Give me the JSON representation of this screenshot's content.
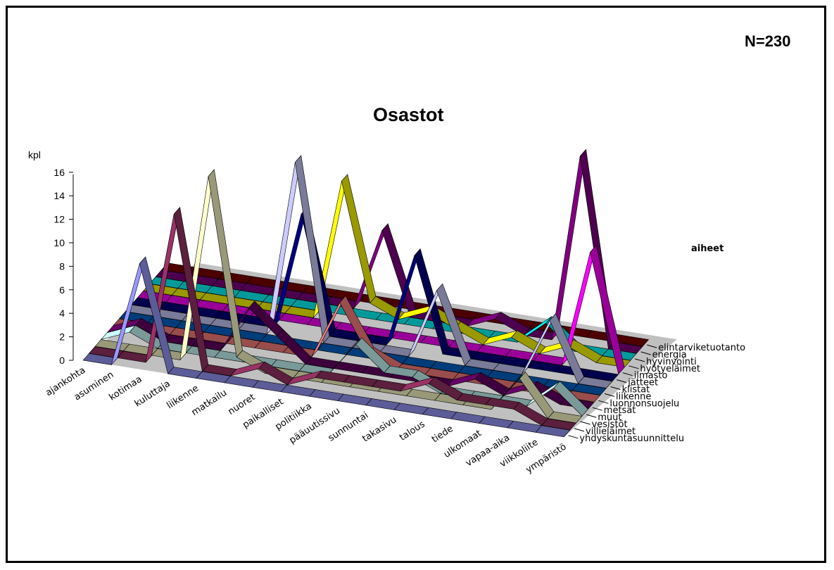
{
  "n_label": "N=230",
  "chart_data": {
    "type": "line",
    "title": "Osastot",
    "ylabel": "kpl",
    "legend_title": "aiheet",
    "ylim": [
      0,
      16
    ],
    "yticks": [
      0,
      2,
      4,
      6,
      8,
      10,
      12,
      14,
      16
    ],
    "categories": [
      "ajankohta",
      "asuminen",
      "kotimaa",
      "kuluttaja",
      "liikenne",
      "matkailu",
      "nuoret",
      "paikalliset",
      "politiikka",
      "pääuutissivu",
      "sunnuntai",
      "takasivu",
      "talous",
      "tiede",
      "ulkomaat",
      "vapaa-aika",
      "viikkoliite",
      "ympäristö"
    ],
    "series": [
      {
        "name": "yhdyskuntasuunnittelu",
        "color": "#9999ff",
        "values": [
          0,
          0,
          9,
          0,
          0,
          0,
          0,
          0,
          0,
          0,
          0,
          0,
          0,
          0,
          0,
          0,
          0,
          0
        ]
      },
      {
        "name": "villieläimet",
        "color": "#993366",
        "values": [
          0,
          0,
          0,
          13,
          0,
          0,
          1,
          0,
          1,
          1,
          1,
          1,
          2,
          1,
          1,
          1,
          0,
          0
        ]
      },
      {
        "name": "vesistöt",
        "color": "#ffffcc",
        "values": [
          0,
          0,
          0,
          0,
          16,
          1,
          0,
          0,
          0,
          0,
          0,
          0,
          0,
          0,
          0,
          3,
          0,
          0
        ]
      },
      {
        "name": "muut",
        "color": "#ccffff",
        "values": [
          0,
          1,
          0,
          0,
          0,
          0,
          0,
          0,
          0,
          3,
          1,
          1,
          0,
          0,
          0,
          0,
          2,
          0
        ]
      },
      {
        "name": "metsät",
        "color": "#660066",
        "values": [
          0,
          1,
          0,
          0,
          0,
          4,
          2,
          0,
          0,
          0,
          0,
          0,
          0,
          1,
          0,
          1,
          0,
          0
        ]
      },
      {
        "name": "luonnonsuojelu",
        "color": "#ff8080",
        "values": [
          0,
          0,
          0,
          0,
          0,
          0,
          0,
          0,
          5,
          1,
          0,
          0,
          0,
          0,
          0,
          0,
          0,
          0
        ]
      },
      {
        "name": "liikenne",
        "color": "#0066cc",
        "values": [
          0,
          0,
          0,
          0,
          0,
          0,
          0,
          0,
          0,
          0,
          0,
          0,
          0,
          0,
          0,
          0,
          0,
          0
        ]
      },
      {
        "name": "kiistat",
        "color": "#ccccff",
        "values": [
          0,
          0,
          0,
          0,
          0,
          0,
          15,
          0,
          0,
          0,
          0,
          6,
          0,
          0,
          0,
          5,
          0,
          0
        ]
      },
      {
        "name": "jätteet",
        "color": "#000080",
        "values": [
          0,
          0,
          0,
          0,
          0,
          0,
          10,
          0,
          0,
          0,
          8,
          0,
          0,
          0,
          0,
          0,
          0,
          0
        ]
      },
      {
        "name": "ilmasto",
        "color": "#ff00ff",
        "values": [
          0,
          0,
          0,
          0,
          0,
          0,
          0,
          0,
          0,
          0,
          0,
          0,
          0,
          0,
          0,
          0,
          10,
          0
        ]
      },
      {
        "name": "hyötyeläimet",
        "color": "#ffff00",
        "values": [
          0,
          0,
          0,
          0,
          0,
          0,
          0,
          12,
          2,
          1,
          2,
          1,
          0,
          1,
          0,
          1,
          0,
          0
        ]
      },
      {
        "name": "hyvinvointi",
        "color": "#00ffff",
        "values": [
          0,
          0,
          0,
          0,
          0,
          0,
          0,
          0,
          0,
          0,
          0,
          0,
          0,
          0,
          2,
          0,
          0,
          0
        ]
      },
      {
        "name": "energia",
        "color": "#800080",
        "values": [
          0,
          0,
          0,
          0,
          0,
          0,
          0,
          0,
          7,
          0,
          0,
          0,
          1,
          0,
          0,
          16,
          0,
          0
        ]
      },
      {
        "name": "elintarviketuotanto",
        "color": "#800000",
        "values": [
          0,
          0,
          0,
          0,
          0,
          0,
          0,
          0,
          0,
          0,
          0,
          0,
          0,
          0,
          0,
          0,
          0,
          0
        ]
      }
    ]
  }
}
